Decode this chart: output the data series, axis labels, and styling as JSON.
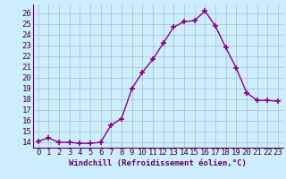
{
  "xlabel": "Windchill (Refroidissement éolien,°C)",
  "x": [
    0,
    1,
    2,
    3,
    4,
    5,
    6,
    7,
    8,
    9,
    10,
    11,
    12,
    13,
    14,
    15,
    16,
    17,
    18,
    19,
    20,
    21,
    22,
    23
  ],
  "y": [
    14.1,
    14.4,
    14.0,
    14.0,
    13.9,
    13.9,
    14.0,
    15.6,
    16.2,
    19.0,
    20.5,
    21.7,
    23.2,
    24.7,
    25.2,
    25.3,
    26.2,
    24.8,
    22.8,
    20.9,
    18.6,
    17.9,
    17.9,
    17.8
  ],
  "ylim": [
    13.5,
    26.8
  ],
  "yticks": [
    14,
    15,
    16,
    17,
    18,
    19,
    20,
    21,
    22,
    23,
    24,
    25,
    26
  ],
  "line_color": "#880088",
  "marker": "+",
  "bg_color": "#cceeff",
  "grid_color": "#aabbcc",
  "label_fontsize": 6.5,
  "tick_fontsize": 6.5
}
